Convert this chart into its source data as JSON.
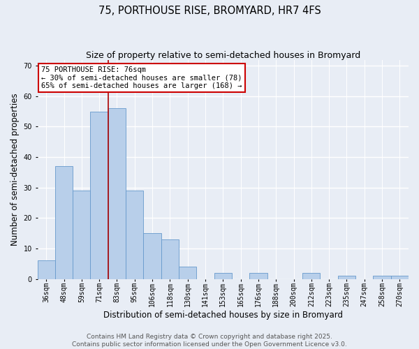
{
  "title": "75, PORTHOUSE RISE, BROMYARD, HR7 4FS",
  "subtitle": "Size of property relative to semi-detached houses in Bromyard",
  "xlabel": "Distribution of semi-detached houses by size in Bromyard",
  "ylabel": "Number of semi-detached properties",
  "categories": [
    "36sqm",
    "48sqm",
    "59sqm",
    "71sqm",
    "83sqm",
    "95sqm",
    "106sqm",
    "118sqm",
    "130sqm",
    "141sqm",
    "153sqm",
    "165sqm",
    "176sqm",
    "188sqm",
    "200sqm",
    "212sqm",
    "223sqm",
    "235sqm",
    "247sqm",
    "258sqm",
    "270sqm"
  ],
  "values": [
    6,
    37,
    29,
    55,
    56,
    29,
    15,
    13,
    4,
    0,
    2,
    0,
    2,
    0,
    0,
    2,
    0,
    1,
    0,
    1,
    1
  ],
  "bar_color": "#b8cfea",
  "bar_edge_color": "#6699cc",
  "background_color": "#e8edf5",
  "grid_color": "#ffffff",
  "annotation_title": "75 PORTHOUSE RISE: 76sqm",
  "annotation_line1": "← 30% of semi-detached houses are smaller (78)",
  "annotation_line2": "65% of semi-detached houses are larger (168) →",
  "vline_color": "#aa0000",
  "annotation_box_edge": "#cc0000",
  "ylim": [
    0,
    72
  ],
  "yticks": [
    0,
    10,
    20,
    30,
    40,
    50,
    60,
    70
  ],
  "footer_line1": "Contains HM Land Registry data © Crown copyright and database right 2025.",
  "footer_line2": "Contains public sector information licensed under the Open Government Licence v3.0.",
  "title_fontsize": 10.5,
  "subtitle_fontsize": 9,
  "axis_label_fontsize": 8.5,
  "tick_fontsize": 7,
  "footer_fontsize": 6.5,
  "annotation_fontsize": 7.5,
  "vline_bar_index": 3
}
